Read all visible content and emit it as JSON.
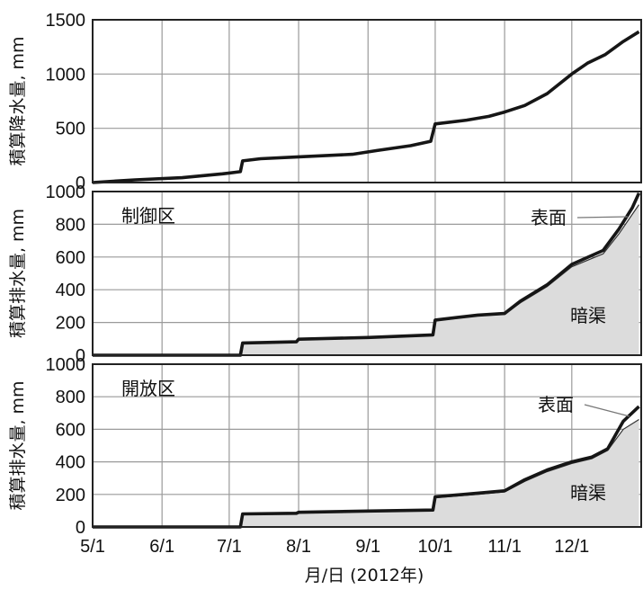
{
  "chart_data": {
    "type": "line",
    "x_axis": {
      "ticks": [
        "5/1",
        "6/1",
        "7/1",
        "8/1",
        "9/1",
        "10/1",
        "11/1",
        "12/1"
      ],
      "label": "月/日 (2012年)",
      "range": [
        "2012-05-01",
        "2012-12-31"
      ]
    },
    "panels": [
      {
        "id": "rain",
        "ylabel": "積算降水量, mm",
        "ylim": [
          0,
          1500
        ],
        "yticks": [
          "0",
          "500",
          "1000",
          "1500"
        ],
        "series": [
          {
            "kind": "line",
            "points": [
              [
                "2012-05-01",
                0
              ],
              [
                "2012-05-20",
                25
              ],
              [
                "2012-06-10",
                45
              ],
              [
                "2012-06-28",
                80
              ],
              [
                "2012-07-06",
                100
              ],
              [
                "2012-07-07",
                200
              ],
              [
                "2012-07-15",
                220
              ],
              [
                "2012-07-31",
                235
              ],
              [
                "2012-08-25",
                260
              ],
              [
                "2012-09-05",
                295
              ],
              [
                "2012-09-20",
                340
              ],
              [
                "2012-09-29",
                380
              ],
              [
                "2012-09-30",
                460
              ],
              [
                "2012-10-01",
                540
              ],
              [
                "2012-10-15",
                575
              ],
              [
                "2012-10-25",
                610
              ],
              [
                "2012-11-01",
                650
              ],
              [
                "2012-11-10",
                710
              ],
              [
                "2012-11-20",
                820
              ],
              [
                "2012-12-01",
                1000
              ],
              [
                "2012-12-08",
                1100
              ],
              [
                "2012-12-16",
                1180
              ],
              [
                "2012-12-24",
                1300
              ],
              [
                "2012-12-31",
                1390
              ]
            ]
          }
        ]
      },
      {
        "id": "control",
        "title": "制御区",
        "ylabel": "積算排水量, mm",
        "ylim": [
          0,
          1000
        ],
        "yticks": [
          "0",
          "200",
          "400",
          "600",
          "800",
          "1000"
        ],
        "annotations": {
          "surface": "表面",
          "drain": "暗渠"
        },
        "series": [
          {
            "kind": "area",
            "name": "暗渠",
            "points": [
              [
                "2012-05-01",
                0
              ],
              [
                "2012-07-06",
                0
              ],
              [
                "2012-07-07",
                75
              ],
              [
                "2012-07-31",
                80
              ],
              [
                "2012-08-01",
                95
              ],
              [
                "2012-09-01",
                105
              ],
              [
                "2012-09-30",
                120
              ],
              [
                "2012-10-01",
                210
              ],
              [
                "2012-10-20",
                240
              ],
              [
                "2012-11-01",
                250
              ],
              [
                "2012-11-08",
                320
              ],
              [
                "2012-11-20",
                420
              ],
              [
                "2012-12-01",
                540
              ],
              [
                "2012-12-15",
                620
              ],
              [
                "2012-12-22",
                740
              ],
              [
                "2012-12-28",
                860
              ],
              [
                "2012-12-31",
                920
              ]
            ]
          },
          {
            "kind": "line",
            "name": "表面",
            "points": [
              [
                "2012-05-01",
                0
              ],
              [
                "2012-07-06",
                0
              ],
              [
                "2012-07-07",
                75
              ],
              [
                "2012-07-31",
                82
              ],
              [
                "2012-08-01",
                98
              ],
              [
                "2012-09-01",
                108
              ],
              [
                "2012-09-30",
                124
              ],
              [
                "2012-10-01",
                215
              ],
              [
                "2012-10-20",
                245
              ],
              [
                "2012-11-01",
                255
              ],
              [
                "2012-11-08",
                330
              ],
              [
                "2012-11-20",
                430
              ],
              [
                "2012-12-01",
                555
              ],
              [
                "2012-12-15",
                640
              ],
              [
                "2012-12-22",
                770
              ],
              [
                "2012-12-28",
                900
              ],
              [
                "2012-12-31",
                990
              ]
            ]
          }
        ]
      },
      {
        "id": "open",
        "title": "開放区",
        "ylabel": "積算排水量, mm",
        "ylim": [
          0,
          1000
        ],
        "yticks": [
          "0",
          "200",
          "400",
          "600",
          "800",
          "1000"
        ],
        "annotations": {
          "surface": "表面",
          "drain": "暗渠"
        },
        "series": [
          {
            "kind": "area",
            "name": "暗渠",
            "points": [
              [
                "2012-05-01",
                0
              ],
              [
                "2012-07-06",
                0
              ],
              [
                "2012-07-07",
                80
              ],
              [
                "2012-07-31",
                82
              ],
              [
                "2012-08-01",
                88
              ],
              [
                "2012-09-01",
                95
              ],
              [
                "2012-09-30",
                100
              ],
              [
                "2012-10-01",
                180
              ],
              [
                "2012-10-20",
                200
              ],
              [
                "2012-11-01",
                215
              ],
              [
                "2012-11-10",
                280
              ],
              [
                "2012-11-20",
                340
              ],
              [
                "2012-12-01",
                390
              ],
              [
                "2012-12-10",
                420
              ],
              [
                "2012-12-17",
                470
              ],
              [
                "2012-12-24",
                600
              ],
              [
                "2012-12-31",
                660
              ]
            ]
          },
          {
            "kind": "line",
            "name": "表面",
            "points": [
              [
                "2012-05-01",
                0
              ],
              [
                "2012-07-06",
                0
              ],
              [
                "2012-07-07",
                80
              ],
              [
                "2012-07-31",
                84
              ],
              [
                "2012-08-01",
                90
              ],
              [
                "2012-09-01",
                98
              ],
              [
                "2012-09-30",
                104
              ],
              [
                "2012-10-01",
                185
              ],
              [
                "2012-10-20",
                208
              ],
              [
                "2012-11-01",
                222
              ],
              [
                "2012-11-10",
                290
              ],
              [
                "2012-11-20",
                350
              ],
              [
                "2012-12-01",
                400
              ],
              [
                "2012-12-10",
                430
              ],
              [
                "2012-12-17",
                480
              ],
              [
                "2012-12-24",
                650
              ],
              [
                "2012-12-31",
                740
              ]
            ]
          }
        ]
      }
    ]
  }
}
